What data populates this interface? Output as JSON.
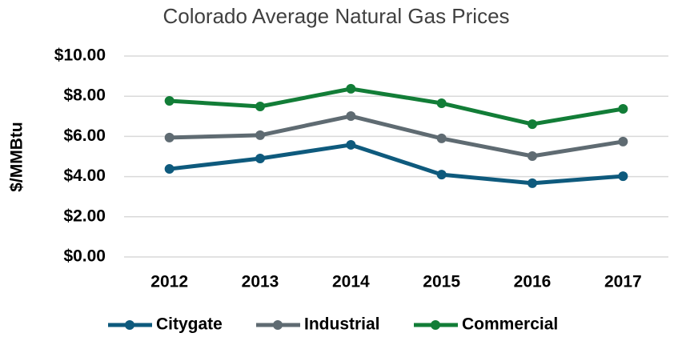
{
  "chart_data": {
    "type": "line",
    "title": "Colorado Average Natural Gas Prices",
    "y_label": "$/MMBtu",
    "categories": [
      "2012",
      "2013",
      "2014",
      "2015",
      "2016",
      "2017"
    ],
    "series": [
      {
        "name": "Citygate",
        "color": "#0e5a7d",
        "values": [
          4.38,
          4.9,
          5.58,
          4.1,
          3.67,
          4.02
        ]
      },
      {
        "name": "Industrial",
        "color": "#5f6b72",
        "values": [
          5.94,
          6.06,
          7.01,
          5.9,
          5.02,
          5.74
        ]
      },
      {
        "name": "Commercial",
        "color": "#127d37",
        "values": [
          7.77,
          7.49,
          8.37,
          7.65,
          6.61,
          7.37
        ]
      }
    ],
    "ylim": [
      0,
      10
    ],
    "yticks": [
      {
        "value": 0,
        "label": "$0.00"
      },
      {
        "value": 2,
        "label": "$2.00"
      },
      {
        "value": 4,
        "label": "$4.00"
      },
      {
        "value": 6,
        "label": "$6.00"
      },
      {
        "value": 8,
        "label": "$8.00"
      },
      {
        "value": 10,
        "label": "$10.00"
      }
    ],
    "grid": true,
    "legend": "bottom"
  }
}
